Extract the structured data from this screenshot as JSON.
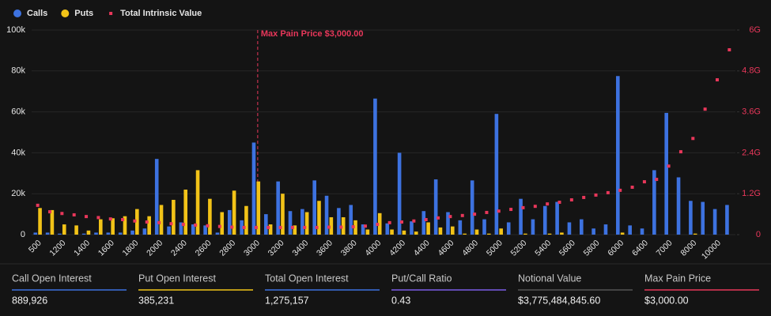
{
  "chart_data": {
    "type": "bar",
    "categories": [
      "500",
      null,
      "1200",
      null,
      "1400",
      null,
      "1600",
      null,
      "1800",
      null,
      "2000",
      null,
      "2400",
      null,
      "2600",
      null,
      "2800",
      null,
      "3000",
      null,
      "3200",
      null,
      "3400",
      null,
      "3600",
      null,
      "3800",
      null,
      "4000",
      null,
      "4200",
      null,
      "4400",
      null,
      "4600",
      null,
      "4800",
      null,
      "5000",
      null,
      "5200",
      null,
      "5400",
      null,
      "5600",
      null,
      "5800",
      null,
      "6000",
      null,
      "6400",
      null,
      "7000",
      null,
      "8000",
      null,
      "10000",
      null
    ],
    "series": [
      {
        "name": "Calls",
        "color": "#3d72e0",
        "type": "bar",
        "values": [
          1000,
          1000,
          500,
          0,
          500,
          1000,
          1000,
          1000,
          2000,
          3000,
          37000,
          4000,
          6000,
          5000,
          4500,
          1000,
          12000,
          7000,
          45000,
          10000,
          26000,
          11500,
          12500,
          26500,
          19000,
          13000,
          14500,
          5000,
          66500,
          5500,
          40000,
          6500,
          11500,
          27000,
          11000,
          7000,
          26500,
          7500,
          59000,
          6000,
          17500,
          7500,
          14000,
          16000,
          6000,
          7500,
          3000,
          5000,
          77500,
          4500,
          3000,
          31500,
          59500,
          28000,
          16500,
          16000,
          12500,
          14500
        ]
      },
      {
        "name": "Puts",
        "color": "#f2c318",
        "type": "bar",
        "values": [
          13000,
          12000,
          5000,
          4500,
          2000,
          7500,
          8000,
          9000,
          12500,
          9000,
          14500,
          17000,
          22000,
          31500,
          17500,
          11000,
          21500,
          14000,
          26000,
          5000,
          20000,
          4500,
          11000,
          16500,
          8500,
          8500,
          7000,
          2500,
          10500,
          2500,
          2000,
          1500,
          6000,
          3500,
          4000,
          500,
          2500,
          500,
          3000,
          0,
          500,
          0,
          500,
          1000,
          0,
          0,
          0,
          0,
          1000,
          0,
          0,
          0,
          0,
          0,
          500,
          0,
          0,
          0
        ]
      },
      {
        "name": "Total Intrinsic Value",
        "color": "#e8375a",
        "type": "scatter",
        "axis": "y2",
        "values": [
          860000000,
          670000000,
          620000000,
          580000000,
          530000000,
          500000000,
          460000000,
          440000000,
          400000000,
          370000000,
          350000000,
          320000000,
          300000000,
          280000000,
          260000000,
          240000000,
          220000000,
          210000000,
          210000000,
          210000000,
          210000000,
          210000000,
          210000000,
          210000000,
          220000000,
          220000000,
          230000000,
          250000000,
          300000000,
          350000000,
          370000000,
          400000000,
          440000000,
          490000000,
          530000000,
          560000000,
          600000000,
          650000000,
          690000000,
          740000000,
          790000000,
          830000000,
          900000000,
          950000000,
          1020000000,
          1090000000,
          1160000000,
          1230000000,
          1300000000,
          1390000000,
          1550000000,
          1620000000,
          2010000000,
          2430000000,
          2820000000,
          3680000000,
          4540000000,
          5420000000
        ]
      }
    ],
    "ylim": [
      0,
      100000
    ],
    "yticks": [
      0,
      {
        "value": 20000,
        "label": "20k"
      },
      {
        "value": 40000,
        "label": "40k"
      },
      {
        "value": 60000,
        "label": "60k"
      },
      {
        "value": 80000,
        "label": "80k"
      },
      {
        "value": 100000,
        "label": "100k"
      }
    ],
    "y2lim": [
      0,
      6000000000
    ],
    "y2ticks": [
      0,
      {
        "value": 1200000000,
        "label": "1.2G"
      },
      {
        "value": 2400000000,
        "label": "2.4G"
      },
      {
        "value": 3600000000,
        "label": "3.6G"
      },
      {
        "value": 4800000000,
        "label": "4.8G"
      },
      {
        "value": 6000000000,
        "label": "6G"
      }
    ],
    "y2color": "#e8375a",
    "grid": true,
    "legend": "top-left",
    "annotation": {
      "text": "Max Pain Price $3,000.00",
      "x": 3000,
      "color": "#e8375a"
    }
  },
  "stats": [
    {
      "label": "Call Open Interest",
      "value": "889,926",
      "color": "#3d72e0"
    },
    {
      "label": "Put Open Interest",
      "value": "385,231",
      "color": "#f2c318"
    },
    {
      "label": "Total Open Interest",
      "value": "1,275,157",
      "color": "#3d72e0"
    },
    {
      "label": "Put/Call Ratio",
      "value": "0.43",
      "color": "#7b5ce6"
    },
    {
      "label": "Notional Value",
      "value": "$3,775,484,845.60",
      "color": "#555555"
    },
    {
      "label": "Max Pain Price",
      "value": "$3,000.00",
      "color": "#e8375a"
    }
  ]
}
